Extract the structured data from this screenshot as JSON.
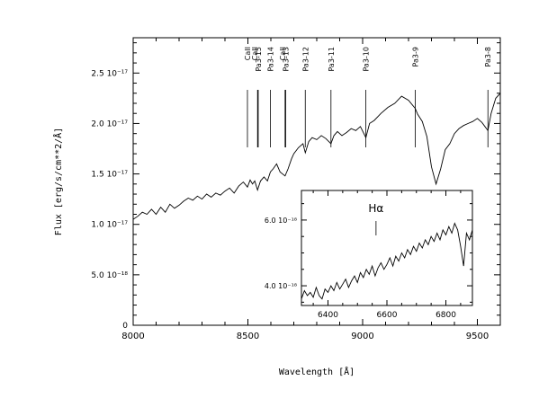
{
  "chart_data": [
    {
      "type": "line",
      "title": "",
      "xlabel": "Wavelength [Å]",
      "ylabel": "Flux [erg/s/cm**2/Å]",
      "xlim": [
        8000,
        9600
      ],
      "ylim": [
        0,
        2.85e-17
      ],
      "x_ticks": [
        {
          "value": 8000,
          "label": "8000"
        },
        {
          "value": 8500,
          "label": "8500"
        },
        {
          "value": 9000,
          "label": "9000"
        },
        {
          "value": 9500,
          "label": "9500"
        }
      ],
      "y_ticks": [
        {
          "value": 0,
          "label": "0"
        },
        {
          "value": 5e-18,
          "label": "5.0  10⁻¹⁸"
        },
        {
          "value": 1e-17,
          "label": "1.0  10⁻¹⁷"
        },
        {
          "value": 1.5e-17,
          "label": "1.5  10⁻¹⁷"
        },
        {
          "value": 2e-17,
          "label": "2.0  10⁻¹⁷"
        },
        {
          "value": 2.5e-17,
          "label": "2.5  10⁻¹⁷"
        }
      ],
      "grid": false,
      "series": [
        {
          "x": [
            8000,
            8020,
            8040,
            8060,
            8080,
            8100,
            8120,
            8140,
            8160,
            8180,
            8200,
            8220,
            8240,
            8260,
            8280,
            8300,
            8320,
            8340,
            8360,
            8380,
            8400,
            8420,
            8440,
            8460,
            8480,
            8498,
            8510,
            8520,
            8530,
            8542,
            8555,
            8570,
            8585,
            8598,
            8610,
            8625,
            8640,
            8662,
            8675,
            8690,
            8700,
            8720,
            8740,
            8750,
            8765,
            8780,
            8800,
            8820,
            8840,
            8862,
            8875,
            8890,
            8910,
            8930,
            8950,
            8970,
            8990,
            9014,
            9030,
            9050,
            9080,
            9110,
            9140,
            9170,
            9200,
            9229,
            9240,
            9260,
            9280,
            9300,
            9320,
            9340,
            9360,
            9380,
            9400,
            9420,
            9440,
            9460,
            9480,
            9500,
            9520,
            9546,
            9560,
            9580,
            9600
          ],
          "y": [
            1.05e-17,
            1.08e-17,
            1.12e-17,
            1.1e-17,
            1.15e-17,
            1.1e-17,
            1.17e-17,
            1.12e-17,
            1.2e-17,
            1.16e-17,
            1.19e-17,
            1.23e-17,
            1.26e-17,
            1.24e-17,
            1.28e-17,
            1.25e-17,
            1.3e-17,
            1.27e-17,
            1.31e-17,
            1.29e-17,
            1.33e-17,
            1.36e-17,
            1.31e-17,
            1.38e-17,
            1.42e-17,
            1.37e-17,
            1.44e-17,
            1.4e-17,
            1.43e-17,
            1.34e-17,
            1.43e-17,
            1.47e-17,
            1.43e-17,
            1.52e-17,
            1.55e-17,
            1.6e-17,
            1.52e-17,
            1.48e-17,
            1.55e-17,
            1.65e-17,
            1.7e-17,
            1.76e-17,
            1.8e-17,
            1.71e-17,
            1.82e-17,
            1.86e-17,
            1.84e-17,
            1.88e-17,
            1.85e-17,
            1.8e-17,
            1.88e-17,
            1.92e-17,
            1.88e-17,
            1.91e-17,
            1.95e-17,
            1.93e-17,
            1.97e-17,
            1.86e-17,
            2e-17,
            2.03e-17,
            2.1e-17,
            2.16e-17,
            2.2e-17,
            2.27e-17,
            2.23e-17,
            2.15e-17,
            2.09e-17,
            2.02e-17,
            1.87e-17,
            1.57e-17,
            1.4e-17,
            1.55e-17,
            1.74e-17,
            1.8e-17,
            1.9e-17,
            1.95e-17,
            1.98e-17,
            2e-17,
            2.02e-17,
            2.05e-17,
            2.01e-17,
            1.93e-17,
            2.1e-17,
            2.25e-17,
            2.3e-17
          ]
        }
      ],
      "markers": [
        {
          "wavelength": 8498,
          "label": "CaII"
        },
        {
          "wavelength": 8542,
          "label": "CaII"
        },
        {
          "wavelength": 8545,
          "label": "Pa3-15"
        },
        {
          "wavelength": 8598,
          "label": "Pa3-14"
        },
        {
          "wavelength": 8662,
          "label": "CaII"
        },
        {
          "wavelength": 8665,
          "label": "Pa3-13"
        },
        {
          "wavelength": 8750,
          "label": "Pa3-12"
        },
        {
          "wavelength": 8862,
          "label": "Pa3-11"
        },
        {
          "wavelength": 9014,
          "label": "Pa3-10"
        },
        {
          "wavelength": 9229,
          "label": "Pa3-9"
        },
        {
          "wavelength": 9546,
          "label": "Pa3-8"
        }
      ]
    },
    {
      "type": "line",
      "title": "",
      "xlabel": "",
      "ylabel": "",
      "xlim": [
        6310,
        6890
      ],
      "ylim": [
        3.4e-18,
        6.9e-18
      ],
      "x_ticks": [
        {
          "value": 6400,
          "label": "6400"
        },
        {
          "value": 6600,
          "label": "6600"
        },
        {
          "value": 6800,
          "label": "6800"
        }
      ],
      "y_ticks": [
        {
          "value": 4e-18,
          "label": "4.0  10⁻¹⁸"
        },
        {
          "value": 6e-18,
          "label": "6.0  10⁻¹⁸"
        }
      ],
      "annotations": [
        {
          "x": 6563,
          "label": "Hα"
        }
      ],
      "series": [
        {
          "x": [
            6310,
            6320,
            6330,
            6340,
            6350,
            6360,
            6370,
            6380,
            6390,
            6400,
            6410,
            6420,
            6430,
            6440,
            6450,
            6460,
            6470,
            6480,
            6490,
            6500,
            6510,
            6520,
            6530,
            6540,
            6550,
            6560,
            6570,
            6580,
            6590,
            6600,
            6610,
            6620,
            6630,
            6640,
            6650,
            6660,
            6670,
            6680,
            6690,
            6700,
            6710,
            6720,
            6730,
            6740,
            6750,
            6760,
            6770,
            6780,
            6790,
            6800,
            6810,
            6820,
            6830,
            6840,
            6850,
            6860,
            6870,
            6880,
            6890
          ],
          "y": [
            3.6e-18,
            3.85e-18,
            3.7e-18,
            3.8e-18,
            3.65e-18,
            3.95e-18,
            3.7e-18,
            3.6e-18,
            3.9e-18,
            3.8e-18,
            4e-18,
            3.85e-18,
            4.1e-18,
            3.9e-18,
            4.05e-18,
            4.2e-18,
            3.95e-18,
            4.15e-18,
            4.3e-18,
            4.1e-18,
            4.4e-18,
            4.25e-18,
            4.5e-18,
            4.35e-18,
            4.6e-18,
            4.3e-18,
            4.55e-18,
            4.7e-18,
            4.5e-18,
            4.65e-18,
            4.85e-18,
            4.6e-18,
            4.9e-18,
            4.75e-18,
            5e-18,
            4.85e-18,
            5.1e-18,
            4.95e-18,
            5.2e-18,
            5.05e-18,
            5.3e-18,
            5.15e-18,
            5.4e-18,
            5.25e-18,
            5.5e-18,
            5.35e-18,
            5.6e-18,
            5.4e-18,
            5.7e-18,
            5.55e-18,
            5.8e-18,
            5.6e-18,
            5.9e-18,
            5.7e-18,
            5.2e-18,
            4.6e-18,
            5.6e-18,
            5.4e-18,
            5.7e-18
          ]
        }
      ]
    }
  ]
}
